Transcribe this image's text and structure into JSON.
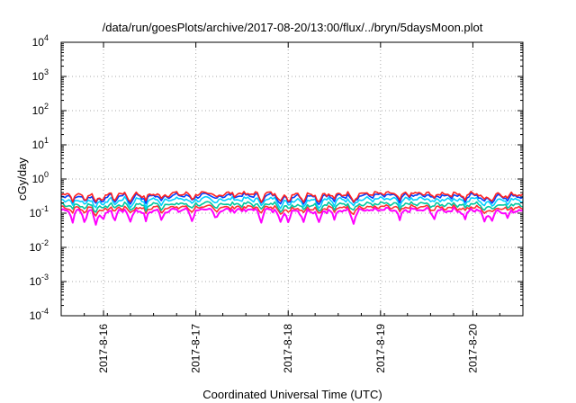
{
  "chart_data": {
    "type": "line",
    "title": "/data/run/goesPlots/archive/2017-08-20/13:00/flux/../bryn/5daysMoon.plot",
    "xlabel": "Coordinated Universal Time (UTC)",
    "ylabel": "cGy/day",
    "y_scale": "log",
    "ylim": [
      0.0001,
      10000
    ],
    "y_ticks": [
      {
        "base": "10",
        "exp": "-4",
        "value": 0.0001
      },
      {
        "base": "10",
        "exp": "-3",
        "value": 0.001
      },
      {
        "base": "10",
        "exp": "-2",
        "value": 0.01
      },
      {
        "base": "10",
        "exp": "-1",
        "value": 0.1
      },
      {
        "base": "10",
        "exp": "0",
        "value": 1
      },
      {
        "base": "10",
        "exp": "1",
        "value": 10
      },
      {
        "base": "10",
        "exp": "2",
        "value": 100
      },
      {
        "base": "10",
        "exp": "3",
        "value": 1000
      },
      {
        "base": "10",
        "exp": "4",
        "value": 10000
      }
    ],
    "x_type": "date",
    "xlim": [
      "2017-08-15T13:00",
      "2017-08-20T13:00"
    ],
    "x_ticks": [
      {
        "label": "2017-8-16",
        "value": "2017-08-16T00:00"
      },
      {
        "label": "2017-8-17",
        "value": "2017-08-17T00:00"
      },
      {
        "label": "2017-8-18",
        "value": "2017-08-18T00:00"
      },
      {
        "label": "2017-8-19",
        "value": "2017-08-19T00:00"
      },
      {
        "label": "2017-8-20",
        "value": "2017-08-20T00:00"
      }
    ],
    "grid": true,
    "series": [
      {
        "color": "#ff00ff",
        "baseline": 0.12
      },
      {
        "color": "#ff3030",
        "baseline": 0.145
      },
      {
        "color": "#00c8a0",
        "baseline": 0.18
      },
      {
        "color": "#00d0ff",
        "baseline": 0.25
      },
      {
        "color": "#0040ff",
        "baseline": 0.32
      },
      {
        "color": "#ff2020",
        "baseline": 0.36
      }
    ],
    "dips": [
      {
        "t": "2017-08-15T16:00",
        "factor": 0.6
      },
      {
        "t": "2017-08-15T19:00",
        "factor": 0.55
      },
      {
        "t": "2017-08-15T22:00",
        "factor": 0.45
      },
      {
        "t": "2017-08-16T00:00",
        "factor": 0.55
      },
      {
        "t": "2017-08-16T03:00",
        "factor": 0.6
      },
      {
        "t": "2017-08-16T07:00",
        "factor": 0.5
      },
      {
        "t": "2017-08-16T11:00",
        "factor": 0.55
      },
      {
        "t": "2017-08-16T15:00",
        "factor": 0.65
      },
      {
        "t": "2017-08-16T23:00",
        "factor": 0.65
      },
      {
        "t": "2017-08-17T05:00",
        "factor": 0.7
      },
      {
        "t": "2017-08-17T17:00",
        "factor": 0.6
      },
      {
        "t": "2017-08-17T22:00",
        "factor": 0.55
      },
      {
        "t": "2017-08-18T00:00",
        "factor": 0.5
      },
      {
        "t": "2017-08-18T04:00",
        "factor": 0.55
      },
      {
        "t": "2017-08-18T08:00",
        "factor": 0.5
      },
      {
        "t": "2017-08-18T12:00",
        "factor": 0.6
      },
      {
        "t": "2017-08-18T17:00",
        "factor": 0.55
      },
      {
        "t": "2017-08-19T05:00",
        "factor": 0.55
      },
      {
        "t": "2017-08-19T14:00",
        "factor": 0.7
      },
      {
        "t": "2017-08-19T22:00",
        "factor": 0.65
      },
      {
        "t": "2017-08-20T03:00",
        "factor": 0.5
      },
      {
        "t": "2017-08-20T05:00",
        "factor": 0.55
      },
      {
        "t": "2017-08-20T09:00",
        "factor": 0.65
      }
    ]
  }
}
